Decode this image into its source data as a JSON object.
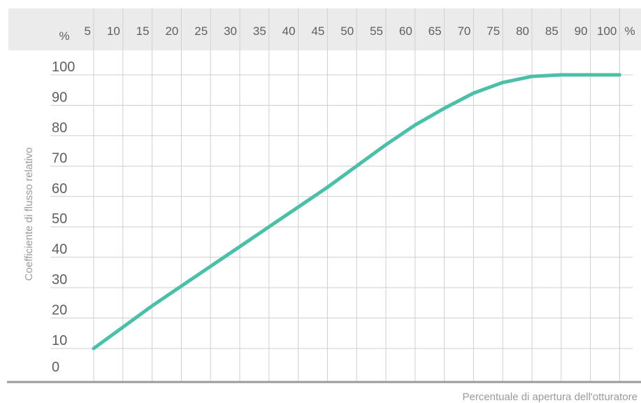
{
  "chart_data": {
    "type": "line",
    "xlabel": "Percentuale di apertura dell'otturatore",
    "ylabel": "Coefficiente di flusso relativo",
    "x_unit": "%",
    "y_unit": "%",
    "x_ticks": [
      "5",
      "10",
      "15",
      "20",
      "25",
      "30",
      "35",
      "40",
      "45",
      "50",
      "55",
      "60",
      "65",
      "70",
      "75",
      "80",
      "85",
      "90",
      "100"
    ],
    "y_ticks": [
      "0",
      "10",
      "20",
      "30",
      "40",
      "50",
      "60",
      "70",
      "80",
      "90",
      "100"
    ],
    "ylim": [
      0,
      100
    ],
    "grid": true,
    "series": [
      {
        "color": "#4dbfa9",
        "x": [
          5,
          10,
          15,
          20,
          25,
          30,
          35,
          40,
          45,
          50,
          55,
          60,
          65,
          70,
          75,
          80,
          85,
          90,
          100
        ],
        "y": [
          10,
          17,
          24,
          30.5,
          37,
          43.5,
          50,
          56.5,
          63,
          70,
          77,
          83.5,
          89,
          94,
          97.5,
          99.5,
          100,
          100,
          100
        ]
      }
    ]
  },
  "colors": {
    "line": "#4dbfa9",
    "grid": "#cfcfcf",
    "header_band": "#ebebeb",
    "baseline": "#9a9a9a"
  }
}
